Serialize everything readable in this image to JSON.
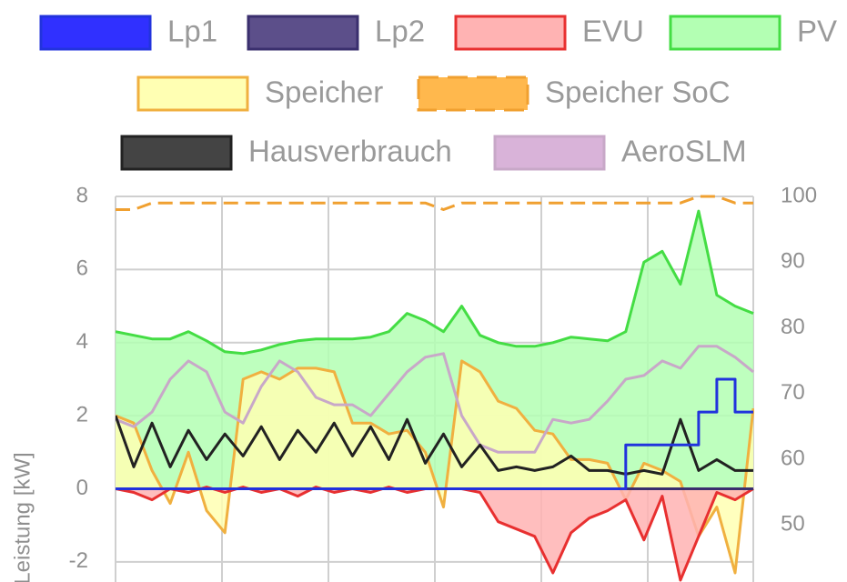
{
  "chart_data": {
    "type": "line",
    "ylabel": "Leistung [kW]",
    "ylim": [
      -2.5,
      8
    ],
    "yticks": [
      -2,
      0,
      2,
      4,
      6,
      8
    ],
    "y2lim": [
      41.6,
      100
    ],
    "y2ticks": [
      50,
      60,
      70,
      80,
      90,
      100
    ],
    "grid": true,
    "legend": "top",
    "series": [
      {
        "name": "Lp1",
        "color": "#2233dd",
        "fill": "#3030ff",
        "step": true,
        "values": [
          0,
          0,
          0,
          0,
          0,
          0,
          0,
          0,
          0,
          0,
          0,
          0,
          0,
          0,
          0,
          0,
          0,
          0,
          0,
          0,
          0,
          0,
          0,
          0,
          0,
          0,
          0,
          0,
          1.2,
          1.2,
          1.2,
          1.2,
          2.1,
          3.0,
          2.1,
          2.1
        ]
      },
      {
        "name": "Lp2",
        "color": "#3a2f6e",
        "fill": "#5c4f8a",
        "step": true,
        "values": [
          0,
          0,
          0,
          0,
          0,
          0,
          0,
          0,
          0,
          0,
          0,
          0,
          0,
          0,
          0,
          0,
          0,
          0,
          0,
          0,
          0,
          0,
          0,
          0,
          0,
          0,
          0,
          0,
          0,
          0,
          0,
          0,
          0,
          0,
          0,
          0
        ]
      },
      {
        "name": "EVU",
        "color": "#e83030",
        "fill": "#ffb3b3",
        "area": true,
        "values": [
          0,
          -0.1,
          -0.3,
          0,
          -0.1,
          0.05,
          -0.1,
          0.05,
          -0.1,
          0,
          -0.2,
          0.05,
          -0.1,
          0,
          -0.1,
          0.05,
          -0.1,
          0,
          0,
          0,
          -0.1,
          -0.9,
          -1.1,
          -1.3,
          -2.3,
          -1.2,
          -0.8,
          -0.6,
          -0.3,
          -1.4,
          -0.2,
          -2.5,
          -1.3,
          -0.1,
          -0.3,
          0
        ]
      },
      {
        "name": "PV",
        "color": "#44dd44",
        "fill": "#b3ffb3",
        "area": true,
        "values": [
          4.3,
          4.2,
          4.1,
          4.1,
          4.3,
          4.05,
          3.75,
          3.7,
          3.8,
          3.95,
          4.05,
          4.1,
          4.1,
          4.1,
          4.15,
          4.3,
          4.8,
          4.6,
          4.3,
          5.0,
          4.2,
          4.0,
          3.9,
          3.9,
          4.0,
          4.15,
          4.1,
          4.05,
          4.3,
          6.2,
          6.5,
          5.6,
          7.6,
          5.3,
          5.0,
          4.8
        ]
      },
      {
        "name": "Speicher",
        "color": "#f0b040",
        "fill": "#ffffb3",
        "area": true,
        "values": [
          2.0,
          1.8,
          0.5,
          -0.4,
          1.0,
          -0.6,
          -1.2,
          3.0,
          3.2,
          3.0,
          3.3,
          3.3,
          3.2,
          1.8,
          1.8,
          1.5,
          1.6,
          1.0,
          -0.5,
          3.5,
          3.2,
          2.4,
          2.2,
          1.6,
          1.5,
          0.8,
          0.8,
          0.7,
          -0.3,
          0.7,
          0.5,
          0.2,
          -1.3,
          -0.5,
          -2.3,
          2.2
        ]
      },
      {
        "name": "Speicher SoC",
        "color": "#f0a030",
        "fill": "#ffb84d",
        "dashed": true,
        "axis": "y2",
        "values": [
          98,
          98,
          99,
          99,
          99,
          99,
          99,
          99,
          99,
          99,
          99,
          99,
          99,
          99,
          99,
          99,
          99,
          99,
          98,
          99,
          99,
          99,
          99,
          99,
          99,
          99,
          99,
          99,
          99,
          99,
          99,
          99,
          100,
          100,
          99,
          99
        ]
      },
      {
        "name": "Hausverbrauch",
        "color": "#222222",
        "fill": "#444444",
        "values": [
          2.0,
          0.6,
          1.8,
          0.6,
          1.6,
          0.8,
          1.5,
          0.9,
          1.7,
          0.8,
          1.6,
          1.0,
          1.8,
          0.9,
          1.7,
          0.8,
          1.9,
          0.7,
          1.5,
          0.6,
          1.2,
          0.5,
          0.6,
          0.5,
          0.6,
          0.9,
          0.5,
          0.5,
          0.4,
          0.5,
          0.4,
          1.9,
          0.5,
          0.8,
          0.5,
          0.5
        ]
      },
      {
        "name": "AeroSLM",
        "color": "#c8a8c8",
        "fill": "#d9b3d9",
        "values": [
          1.9,
          1.7,
          2.1,
          3.0,
          3.5,
          3.2,
          2.1,
          1.8,
          2.8,
          3.5,
          3.2,
          2.5,
          2.3,
          2.3,
          2.0,
          2.6,
          3.2,
          3.6,
          3.7,
          2.0,
          1.2,
          1.0,
          1.0,
          1.0,
          1.9,
          1.8,
          1.9,
          2.4,
          3.0,
          3.1,
          3.5,
          3.3,
          3.9,
          3.9,
          3.6,
          3.2
        ]
      }
    ]
  }
}
